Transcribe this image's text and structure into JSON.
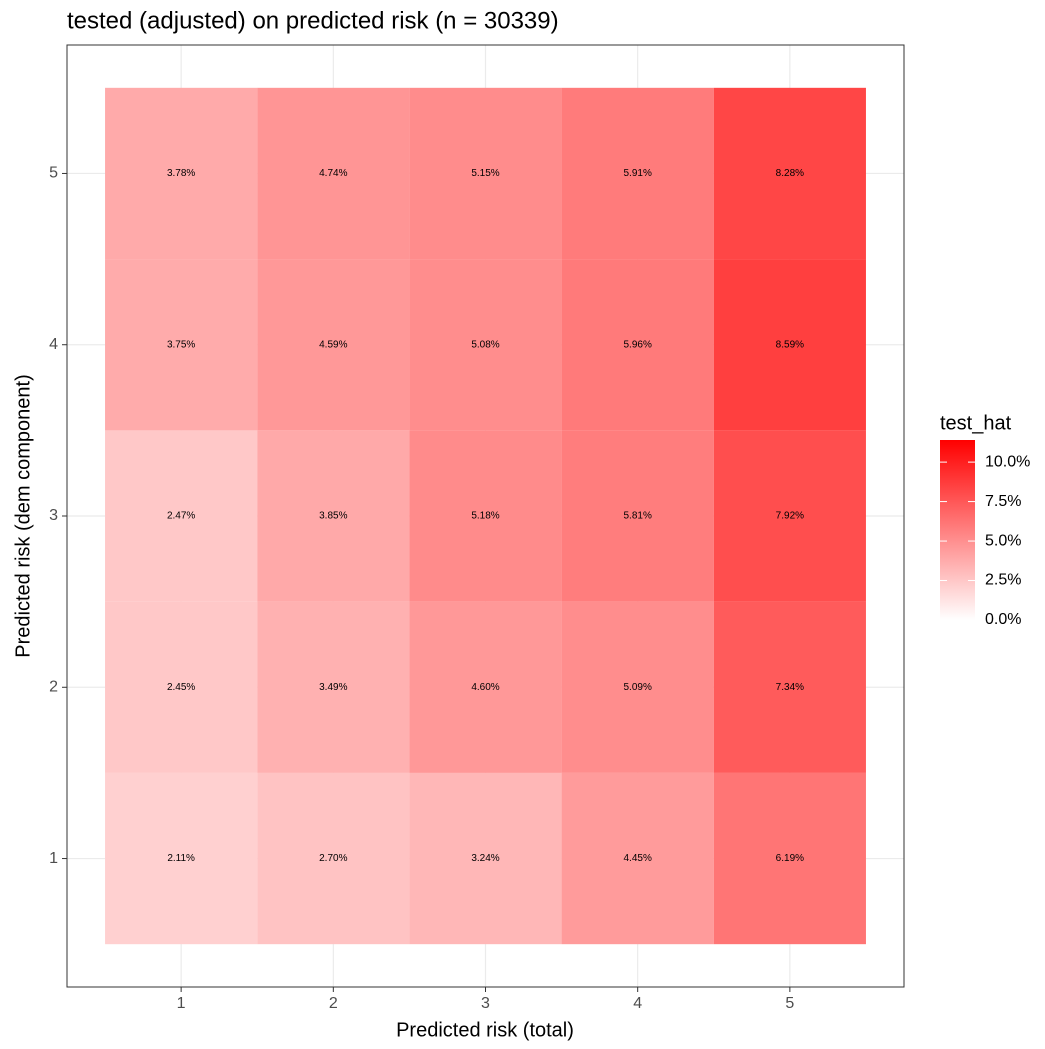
{
  "chart_data": {
    "type": "heatmap",
    "title": "tested (adjusted) on predicted risk (n = 30339)",
    "x_label": "Predicted risk (total)",
    "y_label": "Predicted risk (dem component)",
    "x": [
      1,
      2,
      3,
      4,
      5
    ],
    "y": [
      1,
      2,
      3,
      4,
      5
    ],
    "values": [
      [
        2.11,
        2.7,
        3.24,
        4.45,
        6.19
      ],
      [
        2.45,
        3.49,
        4.6,
        5.09,
        7.34
      ],
      [
        2.47,
        3.85,
        5.18,
        5.81,
        7.92
      ],
      [
        3.75,
        4.59,
        5.08,
        5.96,
        8.59
      ],
      [
        3.78,
        4.74,
        5.15,
        5.91,
        8.28
      ]
    ],
    "value_labels": [
      [
        "2.11%",
        "2.70%",
        "3.24%",
        "4.45%",
        "6.19%"
      ],
      [
        "2.45%",
        "3.49%",
        "4.60%",
        "5.09%",
        "7.34%"
      ],
      [
        "2.47%",
        "3.85%",
        "5.18%",
        "5.81%",
        "7.92%"
      ],
      [
        "3.75%",
        "4.59%",
        "5.08%",
        "5.96%",
        "8.59%"
      ],
      [
        "3.78%",
        "4.74%",
        "5.15%",
        "5.91%",
        "8.28%"
      ]
    ],
    "xlim": [
      0.25,
      5.75
    ],
    "xticks": [
      1,
      2,
      3,
      4,
      5
    ],
    "ylim": [
      0.25,
      5.75
    ],
    "yticks": [
      1,
      2,
      3,
      4,
      5
    ],
    "grid": true,
    "legend_title": "test_hat",
    "colorscale": [
      "#ffffff",
      "#ff0000"
    ],
    "clim": [
      0,
      11.4
    ],
    "cticks": [
      {
        "value": 0,
        "label": "0.0%"
      },
      {
        "value": 2.5,
        "label": "2.5%"
      },
      {
        "value": 5,
        "label": "5.0%"
      },
      {
        "value": 7.5,
        "label": "7.5%"
      },
      {
        "value": 10,
        "label": "10.0%"
      }
    ]
  }
}
